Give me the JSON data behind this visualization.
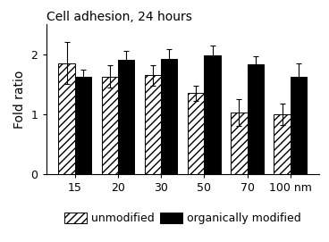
{
  "title": "Cell adhesion, 24 hours",
  "ylabel": "Fold ratio",
  "categories": [
    "15",
    "20",
    "30",
    "50",
    "70",
    "100 nm"
  ],
  "unmodified_values": [
    1.85,
    1.63,
    1.65,
    1.35,
    1.03,
    1.0
  ],
  "unmodified_errors": [
    0.35,
    0.18,
    0.17,
    0.13,
    0.22,
    0.18
  ],
  "organically_values": [
    1.62,
    1.9,
    1.92,
    1.98,
    1.83,
    1.63
  ],
  "organically_errors": [
    0.13,
    0.15,
    0.17,
    0.17,
    0.13,
    0.22
  ],
  "ylim": [
    0,
    2.5
  ],
  "yticks": [
    0,
    1,
    2
  ],
  "bar_width": 0.38,
  "hatch_pattern": "////",
  "legend_labels": [
    "unmodified",
    "organically modified"
  ],
  "background_color": "#ffffff",
  "title_fontsize": 10,
  "axis_fontsize": 10,
  "tick_fontsize": 9,
  "legend_fontsize": 9
}
